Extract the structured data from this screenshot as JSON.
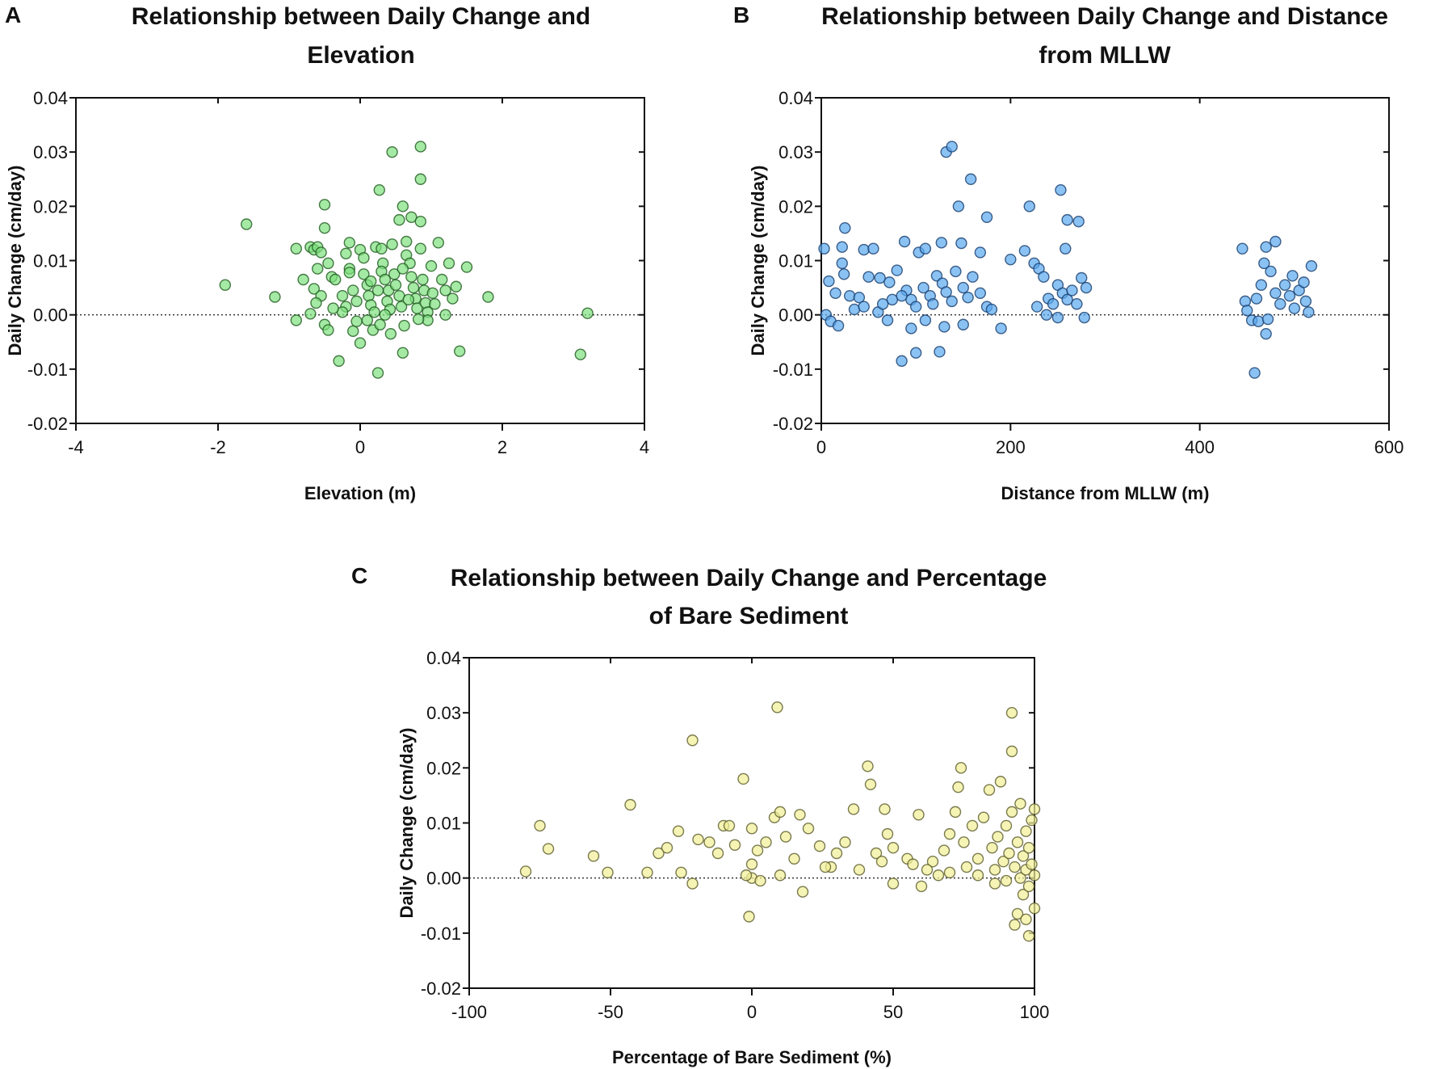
{
  "chart_data": [
    {
      "id": "A",
      "type": "scatter",
      "panel_label": "A",
      "title_lines": [
        "Relationship between Daily Change and",
        "Elevation"
      ],
      "xlabel": "Elevation (m)",
      "ylabel": "Daily Change (cm/day)",
      "xlim": [
        -4,
        4
      ],
      "ylim": [
        -0.02,
        0.04
      ],
      "xticks": [
        -4,
        -2,
        0,
        2,
        4
      ],
      "xtick_labels": [
        "-4",
        "-2",
        "0",
        "2",
        "4"
      ],
      "yticks": [
        -0.02,
        -0.01,
        0,
        0.01,
        0.02,
        0.03,
        0.04
      ],
      "ytick_labels": [
        "-0.02",
        "-0.01",
        "0.00",
        "0.01",
        "0.02",
        "0.03",
        "0.04"
      ],
      "reference_line": 0,
      "marker_fill": "#7ee07e",
      "marker_stroke": "#1f5a1f",
      "points": [
        [
          -1.9,
          0.0055
        ],
        [
          -1.6,
          0.0167
        ],
        [
          -1.2,
          0.0033
        ],
        [
          -0.9,
          0.0122
        ],
        [
          -0.9,
          -0.001
        ],
        [
          -0.8,
          0.0065
        ],
        [
          -0.7,
          0.0125
        ],
        [
          -0.65,
          0.012
        ],
        [
          -0.5,
          0.0203
        ],
        [
          -0.5,
          0.016
        ],
        [
          -0.3,
          -0.0085
        ],
        [
          0.45,
          0.03
        ],
        [
          0.85,
          0.031
        ],
        [
          0.85,
          0.025
        ],
        [
          0.27,
          0.023
        ],
        [
          0.6,
          0.02
        ],
        [
          0.55,
          0.0175
        ],
        [
          0.72,
          0.018
        ],
        [
          0.85,
          0.0172
        ],
        [
          0.65,
          0.0135
        ],
        [
          1.1,
          0.0133
        ],
        [
          0.45,
          0.013
        ],
        [
          -0.15,
          0.0133
        ],
        [
          1.25,
          0.0095
        ],
        [
          1.5,
          0.0088
        ],
        [
          1.8,
          0.0033
        ],
        [
          1.4,
          -0.0067
        ],
        [
          3.2,
          0.0003
        ],
        [
          3.1,
          -0.0073
        ],
        [
          0.25,
          -0.0107
        ],
        [
          0.6,
          -0.007
        ],
        [
          0.0,
          -0.0052
        ],
        [
          -0.1,
          -0.003
        ],
        [
          0.43,
          -0.0035
        ],
        [
          -0.6,
          0.0125
        ],
        [
          -0.55,
          0.0115
        ],
        [
          -0.45,
          0.0095
        ],
        [
          -0.6,
          0.0085
        ],
        [
          -0.4,
          0.007
        ],
        [
          -0.65,
          0.0048
        ],
        [
          -0.55,
          0.0035
        ],
        [
          -0.62,
          0.0022
        ],
        [
          -0.7,
          0.0002
        ],
        [
          -0.5,
          -0.0018
        ],
        [
          -0.45,
          -0.0028
        ],
        [
          -0.35,
          0.0065
        ],
        [
          -0.2,
          0.0113
        ],
        [
          -0.15,
          0.0085
        ],
        [
          -0.15,
          0.0078
        ],
        [
          -0.25,
          0.0035
        ],
        [
          -0.2,
          0.0015
        ],
        [
          -0.1,
          0.0045
        ],
        [
          -0.05,
          0.0025
        ],
        [
          0.0,
          0.012
        ],
        [
          0.05,
          0.0105
        ],
        [
          0.1,
          0.0055
        ],
        [
          0.12,
          0.0035
        ],
        [
          0.15,
          0.0018
        ],
        [
          0.2,
          0.0005
        ],
        [
          0.22,
          0.0125
        ],
        [
          0.3,
          0.0122
        ],
        [
          0.32,
          0.0095
        ],
        [
          0.3,
          0.008
        ],
        [
          0.35,
          0.0065
        ],
        [
          0.4,
          0.0045
        ],
        [
          0.38,
          0.0025
        ],
        [
          0.42,
          0.001
        ],
        [
          0.48,
          0.0075
        ],
        [
          0.5,
          0.0055
        ],
        [
          0.55,
          0.0035
        ],
        [
          0.58,
          0.0015
        ],
        [
          0.62,
          -0.002
        ],
        [
          0.65,
          0.011
        ],
        [
          0.7,
          0.0095
        ],
        [
          0.72,
          0.007
        ],
        [
          0.75,
          0.005
        ],
        [
          0.78,
          0.003
        ],
        [
          0.8,
          0.0012
        ],
        [
          0.85,
          0.0122
        ],
        [
          0.88,
          0.0065
        ],
        [
          0.9,
          0.0045
        ],
        [
          0.92,
          0.0022
        ],
        [
          0.95,
          0.0005
        ],
        [
          1.0,
          0.009
        ],
        [
          1.02,
          0.004
        ],
        [
          1.05,
          0.002
        ],
        [
          1.15,
          0.0065
        ],
        [
          1.2,
          0.0045
        ],
        [
          1.2,
          0.0
        ],
        [
          1.3,
          0.003
        ],
        [
          1.35,
          0.0052
        ],
        [
          0.18,
          -0.0028
        ],
        [
          0.1,
          -0.001
        ],
        [
          -0.05,
          -0.0012
        ],
        [
          0.28,
          -0.0018
        ],
        [
          0.35,
          0.0
        ],
        [
          -0.25,
          0.0005
        ],
        [
          0.05,
          0.0075
        ],
        [
          0.25,
          0.0045
        ],
        [
          0.15,
          0.0062
        ],
        [
          0.6,
          0.0085
        ],
        [
          0.68,
          0.0028
        ],
        [
          0.95,
          -0.001
        ],
        [
          0.82,
          -0.0008
        ],
        [
          -0.38,
          0.0012
        ]
      ]
    },
    {
      "id": "B",
      "type": "scatter",
      "panel_label": "B",
      "title_lines": [
        "Relationship between Daily Change and Distance",
        "from MLLW"
      ],
      "xlabel": "Distance from MLLW (m)",
      "ylabel": "Daily Change (cm/day)",
      "xlim": [
        0,
        600
      ],
      "ylim": [
        -0.02,
        0.04
      ],
      "xticks": [
        0,
        200,
        400,
        600
      ],
      "xtick_labels": [
        "0",
        "200",
        "400",
        "600"
      ],
      "yticks": [
        -0.02,
        -0.01,
        0,
        0.01,
        0.02,
        0.03,
        0.04
      ],
      "ytick_labels": [
        "-0.02",
        "-0.01",
        "0.00",
        "0.01",
        "0.02",
        "0.03",
        "0.04"
      ],
      "reference_line": 0,
      "marker_fill": "#5aa8ef",
      "marker_stroke": "#163c6c",
      "points": [
        [
          132,
          0.03
        ],
        [
          138,
          0.031
        ],
        [
          158,
          0.025
        ],
        [
          145,
          0.02
        ],
        [
          220,
          0.02
        ],
        [
          253,
          0.023
        ],
        [
          260,
          0.0175
        ],
        [
          272,
          0.0172
        ],
        [
          175,
          0.018
        ],
        [
          25,
          0.016
        ],
        [
          458,
          -0.0107
        ],
        [
          85,
          -0.0085
        ],
        [
          100,
          -0.007
        ],
        [
          125,
          -0.0068
        ],
        [
          470,
          -0.0035
        ],
        [
          190,
          -0.0025
        ],
        [
          480,
          0.0135
        ],
        [
          3,
          0.0122
        ],
        [
          22,
          0.0125
        ],
        [
          45,
          0.012
        ],
        [
          55,
          0.0122
        ],
        [
          88,
          0.0135
        ],
        [
          103,
          0.0115
        ],
        [
          110,
          0.0122
        ],
        [
          127,
          0.0133
        ],
        [
          148,
          0.0132
        ],
        [
          168,
          0.0115
        ],
        [
          200,
          0.0102
        ],
        [
          215,
          0.0118
        ],
        [
          258,
          0.0122
        ],
        [
          445,
          0.0122
        ],
        [
          470,
          0.0125
        ],
        [
          8,
          0.0062
        ],
        [
          15,
          0.004
        ],
        [
          22,
          0.0095
        ],
        [
          24,
          0.0075
        ],
        [
          30,
          0.0035
        ],
        [
          40,
          0.0032
        ],
        [
          50,
          0.007
        ],
        [
          62,
          0.0068
        ],
        [
          72,
          0.006
        ],
        [
          80,
          0.0082
        ],
        [
          90,
          0.0045
        ],
        [
          95,
          0.0028
        ],
        [
          100,
          0.0015
        ],
        [
          108,
          0.005
        ],
        [
          115,
          0.0035
        ],
        [
          118,
          0.002
        ],
        [
          122,
          0.0072
        ],
        [
          128,
          0.0058
        ],
        [
          132,
          0.0042
        ],
        [
          138,
          0.0025
        ],
        [
          142,
          0.008
        ],
        [
          150,
          0.005
        ],
        [
          155,
          0.0032
        ],
        [
          160,
          0.007
        ],
        [
          168,
          0.004
        ],
        [
          175,
          0.0015
        ],
        [
          180,
          0.001
        ],
        [
          5,
          0.0
        ],
        [
          10,
          -0.0012
        ],
        [
          18,
          -0.002
        ],
        [
          35,
          0.001
        ],
        [
          60,
          0.0005
        ],
        [
          70,
          -0.001
        ],
        [
          95,
          -0.0025
        ],
        [
          110,
          -0.001
        ],
        [
          130,
          -0.0022
        ],
        [
          150,
          -0.0018
        ],
        [
          75,
          0.0028
        ],
        [
          85,
          0.0035
        ],
        [
          65,
          0.002
        ],
        [
          45,
          0.0015
        ],
        [
          225,
          0.0095
        ],
        [
          230,
          0.0085
        ],
        [
          235,
          0.007
        ],
        [
          228,
          0.0015
        ],
        [
          240,
          0.003
        ],
        [
          245,
          0.002
        ],
        [
          250,
          0.0055
        ],
        [
          255,
          0.004
        ],
        [
          260,
          0.0028
        ],
        [
          265,
          0.0045
        ],
        [
          270,
          0.002
        ],
        [
          275,
          0.0068
        ],
        [
          280,
          0.005
        ],
        [
          238,
          0.0
        ],
        [
          250,
          -0.0005
        ],
        [
          278,
          -0.0005
        ],
        [
          448,
          0.0025
        ],
        [
          450,
          0.0008
        ],
        [
          455,
          -0.001
        ],
        [
          460,
          0.003
        ],
        [
          465,
          0.0055
        ],
        [
          468,
          0.0095
        ],
        [
          475,
          0.008
        ],
        [
          480,
          0.004
        ],
        [
          485,
          0.002
        ],
        [
          490,
          0.0055
        ],
        [
          495,
          0.0035
        ],
        [
          498,
          0.0072
        ],
        [
          505,
          0.0045
        ],
        [
          510,
          0.006
        ],
        [
          512,
          0.0025
        ],
        [
          518,
          0.009
        ],
        [
          515,
          0.0005
        ],
        [
          462,
          -0.0012
        ],
        [
          472,
          -0.0008
        ],
        [
          500,
          0.0012
        ]
      ]
    },
    {
      "id": "C",
      "type": "scatter",
      "panel_label": "C",
      "title_lines": [
        "Relationship between Daily Change and Percentage",
        "of Bare  Sediment"
      ],
      "xlabel": "Percentage of Bare Sediment (%)",
      "ylabel": "Daily Change (cm/day)",
      "xlim": [
        -100,
        100
      ],
      "ylim": [
        -0.02,
        0.04
      ],
      "xticks": [
        -100,
        -50,
        0,
        50,
        100
      ],
      "xtick_labels": [
        "-100",
        "-50",
        "0",
        "50",
        "100"
      ],
      "yticks": [
        -0.02,
        -0.01,
        0,
        0.01,
        0.02,
        0.03,
        0.04
      ],
      "ytick_labels": [
        "-0.02",
        "-0.01",
        "0.00",
        "0.01",
        "0.02",
        "0.03",
        "0.04"
      ],
      "reference_line": 0,
      "marker_fill": "#f2f096",
      "marker_stroke": "#5a5a2a",
      "points": [
        [
          9,
          0.031
        ],
        [
          -21,
          0.025
        ],
        [
          92,
          0.03
        ],
        [
          92,
          0.023
        ],
        [
          -3,
          0.018
        ],
        [
          41,
          0.0203
        ],
        [
          74,
          0.02
        ],
        [
          -43,
          0.0133
        ],
        [
          -75,
          0.0095
        ],
        [
          -72,
          0.0053
        ],
        [
          -80,
          0.0012
        ],
        [
          -56,
          0.004
        ],
        [
          -51,
          0.001
        ],
        [
          -1,
          -0.007
        ],
        [
          98,
          -0.0105
        ],
        [
          93,
          -0.0085
        ],
        [
          18,
          -0.0025
        ],
        [
          -21,
          -0.001
        ],
        [
          -37,
          0.001
        ],
        [
          -33,
          0.0045
        ],
        [
          -30,
          0.0055
        ],
        [
          -26,
          0.0085
        ],
        [
          -25,
          0.001
        ],
        [
          -19,
          0.007
        ],
        [
          -10,
          0.0095
        ],
        [
          -8,
          0.0095
        ],
        [
          -6,
          0.006
        ],
        [
          -12,
          0.0045
        ],
        [
          0,
          0.009
        ],
        [
          0,
          0.0025
        ],
        [
          0,
          0.0
        ],
        [
          2,
          0.005
        ],
        [
          5,
          0.0065
        ],
        [
          8,
          0.011
        ],
        [
          10,
          0.012
        ],
        [
          12,
          0.0075
        ],
        [
          10,
          0.0005
        ],
        [
          15,
          0.0035
        ],
        [
          17,
          0.0115
        ],
        [
          20,
          0.009
        ],
        [
          24,
          0.0058
        ],
        [
          28,
          0.002
        ],
        [
          30,
          0.0045
        ],
        [
          33,
          0.0065
        ],
        [
          36,
          0.0125
        ],
        [
          38,
          0.0015
        ],
        [
          42,
          0.017
        ],
        [
          44,
          0.0045
        ],
        [
          46,
          0.003
        ],
        [
          47,
          0.0125
        ],
        [
          48,
          0.008
        ],
        [
          50,
          0.0055
        ],
        [
          50,
          -0.001
        ],
        [
          55,
          0.0035
        ],
        [
          57,
          0.0025
        ],
        [
          59,
          0.0115
        ],
        [
          60,
          -0.0015
        ],
        [
          64,
          0.003
        ],
        [
          66,
          0.0005
        ],
        [
          68,
          0.005
        ],
        [
          70,
          0.008
        ],
        [
          72,
          0.012
        ],
        [
          73,
          0.0165
        ],
        [
          75,
          0.0065
        ],
        [
          76,
          0.002
        ],
        [
          78,
          0.0095
        ],
        [
          80,
          0.0035
        ],
        [
          82,
          0.011
        ],
        [
          84,
          0.016
        ],
        [
          85,
          0.0055
        ],
        [
          86,
          0.0015
        ],
        [
          87,
          0.0075
        ],
        [
          88,
          0.0175
        ],
        [
          89,
          0.003
        ],
        [
          90,
          0.0095
        ],
        [
          90,
          -0.0005
        ],
        [
          91,
          0.0045
        ],
        [
          92,
          0.012
        ],
        [
          93,
          0.002
        ],
        [
          94,
          0.0065
        ],
        [
          95,
          0.0135
        ],
        [
          95,
          0.0
        ],
        [
          96,
          0.004
        ],
        [
          96,
          -0.003
        ],
        [
          97,
          0.0085
        ],
        [
          97,
          0.0015
        ],
        [
          98,
          0.0055
        ],
        [
          98,
          -0.0015
        ],
        [
          99,
          0.0025
        ],
        [
          99,
          0.0105
        ],
        [
          100,
          0.0125
        ],
        [
          100,
          0.0005
        ],
        [
          94,
          -0.0065
        ],
        [
          97,
          -0.0075
        ],
        [
          100,
          -0.0055
        ],
        [
          86,
          -0.001
        ],
        [
          80,
          0.0005
        ],
        [
          70,
          0.001
        ],
        [
          62,
          0.0015
        ],
        [
          -2,
          0.0005
        ],
        [
          3,
          -0.0005
        ],
        [
          -15,
          0.0065
        ],
        [
          26,
          0.002
        ]
      ]
    }
  ]
}
